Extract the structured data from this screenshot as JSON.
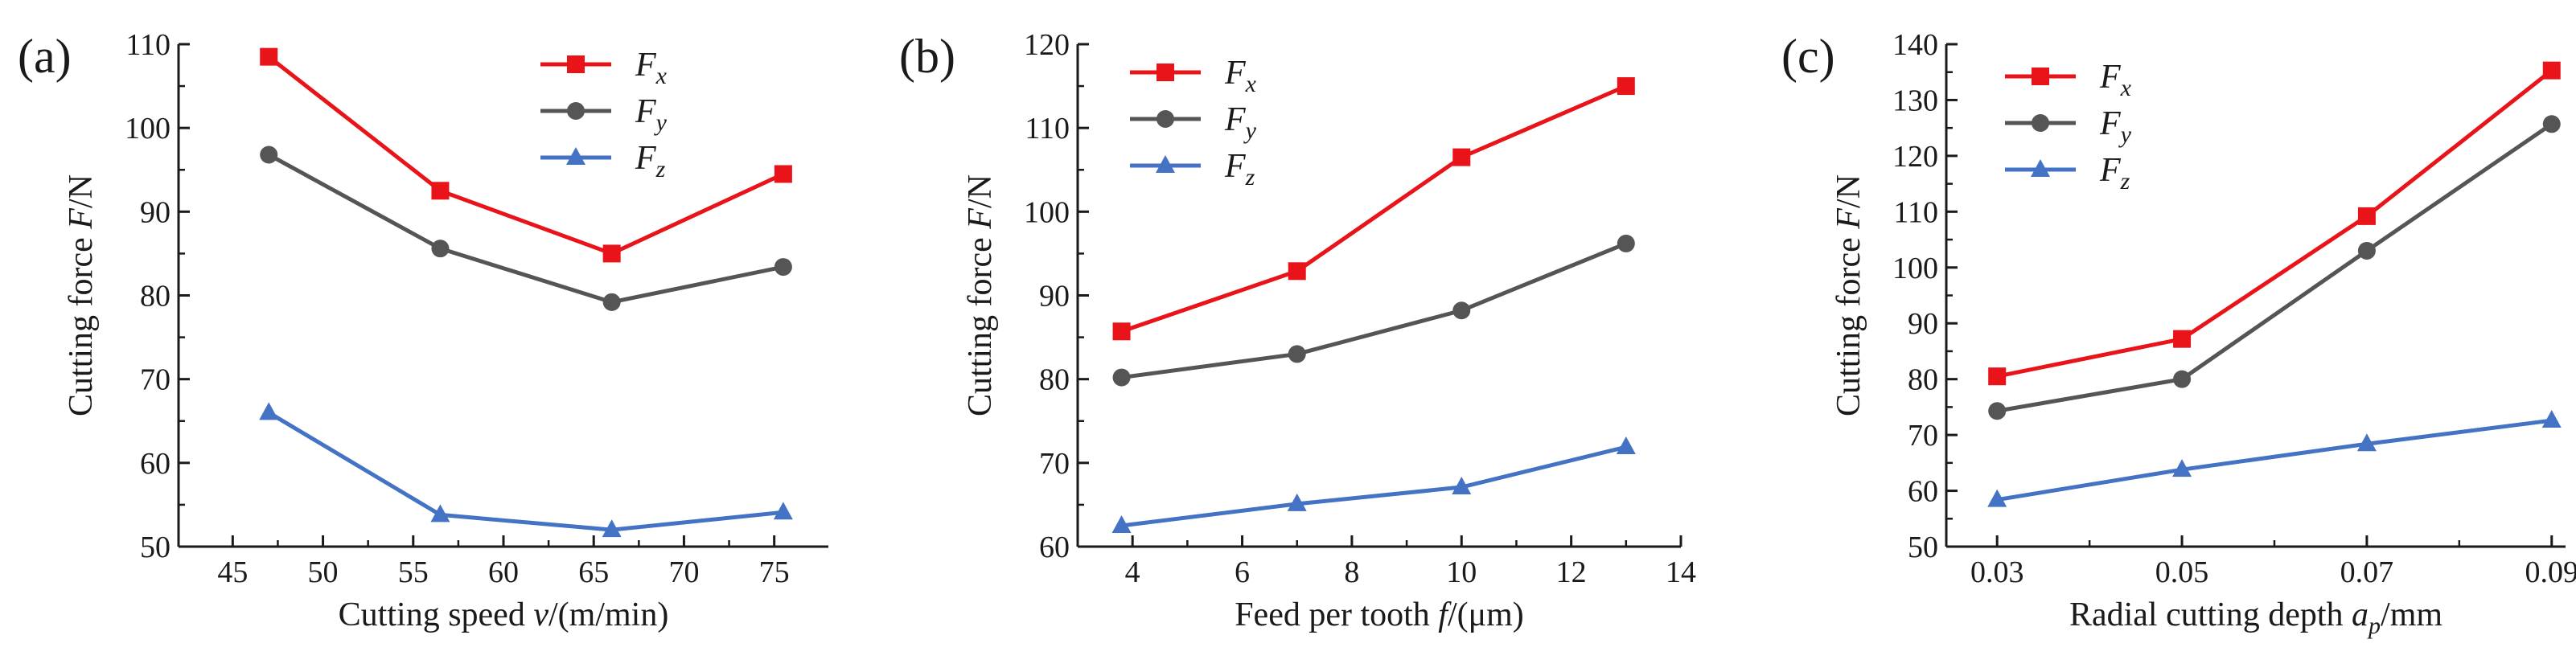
{
  "chart_data": [
    {
      "type": "line",
      "panel_label": "(a)",
      "xlabel": "Cutting speed v/(m/min)",
      "xlabel_parts": [
        "Cutting speed ",
        "v",
        "/(m/min)"
      ],
      "ylabel": "Cutting force F/N",
      "ylabel_parts": [
        "Cutting force ",
        "F",
        "/N"
      ],
      "xlim": [
        42,
        78
      ],
      "ylim": [
        50,
        110
      ],
      "xticks": [
        45,
        50,
        55,
        60,
        65,
        70,
        75
      ],
      "yticks": [
        50,
        60,
        70,
        80,
        90,
        100,
        110
      ],
      "x": [
        47,
        56.5,
        66,
        75.5
      ],
      "series": [
        {
          "name": "Fx",
          "base": "F",
          "sub": "x",
          "color": "#e8141a",
          "marker": "square",
          "values": [
            108.5,
            92.5,
            85,
            94.5
          ]
        },
        {
          "name": "Fy",
          "base": "F",
          "sub": "y",
          "color": "#555555",
          "marker": "circle",
          "values": [
            96.8,
            85.6,
            79.2,
            83.4
          ]
        },
        {
          "name": "Fz",
          "base": "F",
          "sub": "z",
          "color": "#4472c4",
          "marker": "triangle",
          "values": [
            66,
            53.8,
            52,
            54.1
          ]
        }
      ],
      "legend_position": "top-right",
      "grid": false
    },
    {
      "type": "line",
      "panel_label": "(b)",
      "xlabel": "Feed per tooth f/(μm)",
      "xlabel_parts": [
        "Feed per tooth ",
        "f",
        "/(μm)"
      ],
      "ylabel": "Cutting force F/N",
      "ylabel_parts": [
        "Cutting force ",
        "F",
        "/N"
      ],
      "xlim": [
        3,
        14
      ],
      "ylim": [
        60,
        120
      ],
      "xticks": [
        4,
        6,
        8,
        10,
        12,
        14
      ],
      "yticks": [
        60,
        70,
        80,
        90,
        100,
        110,
        120
      ],
      "x": [
        3.8,
        7,
        10,
        13
      ],
      "series": [
        {
          "name": "Fx",
          "base": "F",
          "sub": "x",
          "color": "#e8141a",
          "marker": "square",
          "values": [
            85.7,
            92.9,
            106.5,
            115
          ]
        },
        {
          "name": "Fy",
          "base": "F",
          "sub": "y",
          "color": "#555555",
          "marker": "circle",
          "values": [
            80.2,
            83,
            88.2,
            96.2
          ]
        },
        {
          "name": "Fz",
          "base": "F",
          "sub": "z",
          "color": "#4472c4",
          "marker": "triangle",
          "values": [
            62.5,
            65.1,
            67.1,
            71.9
          ]
        }
      ],
      "legend_position": "top-left",
      "grid": false
    },
    {
      "type": "line",
      "panel_label": "(c)",
      "xlabel": "Radial cutting depth ap/mm",
      "xlabel_parts": [
        "Radial cutting depth ",
        "a",
        "p",
        "/mm"
      ],
      "ylabel": "Cutting force F/N",
      "ylabel_parts": [
        "Cutting force ",
        "F",
        "/N"
      ],
      "xlim": [
        0.0245,
        0.0915
      ],
      "ylim": [
        50,
        140
      ],
      "xticks": [
        0.03,
        0.05,
        0.07,
        0.09
      ],
      "xtick_labels": [
        "0.03",
        "0.05",
        "0.07",
        "0.09"
      ],
      "yticks": [
        50,
        60,
        70,
        80,
        90,
        100,
        110,
        120,
        130,
        140
      ],
      "x": [
        0.03,
        0.05,
        0.07,
        0.09
      ],
      "series": [
        {
          "name": "Fx",
          "base": "F",
          "sub": "x",
          "color": "#e8141a",
          "marker": "square",
          "values": [
            80.5,
            87.2,
            109.2,
            135.3
          ]
        },
        {
          "name": "Fy",
          "base": "F",
          "sub": "y",
          "color": "#555555",
          "marker": "circle",
          "values": [
            74.3,
            80,
            103,
            125.7
          ]
        },
        {
          "name": "Fz",
          "base": "F",
          "sub": "z",
          "color": "#4472c4",
          "marker": "triangle",
          "values": [
            58.4,
            63.8,
            68.4,
            72.6
          ]
        }
      ],
      "legend_position": "top-left",
      "grid": false
    }
  ]
}
